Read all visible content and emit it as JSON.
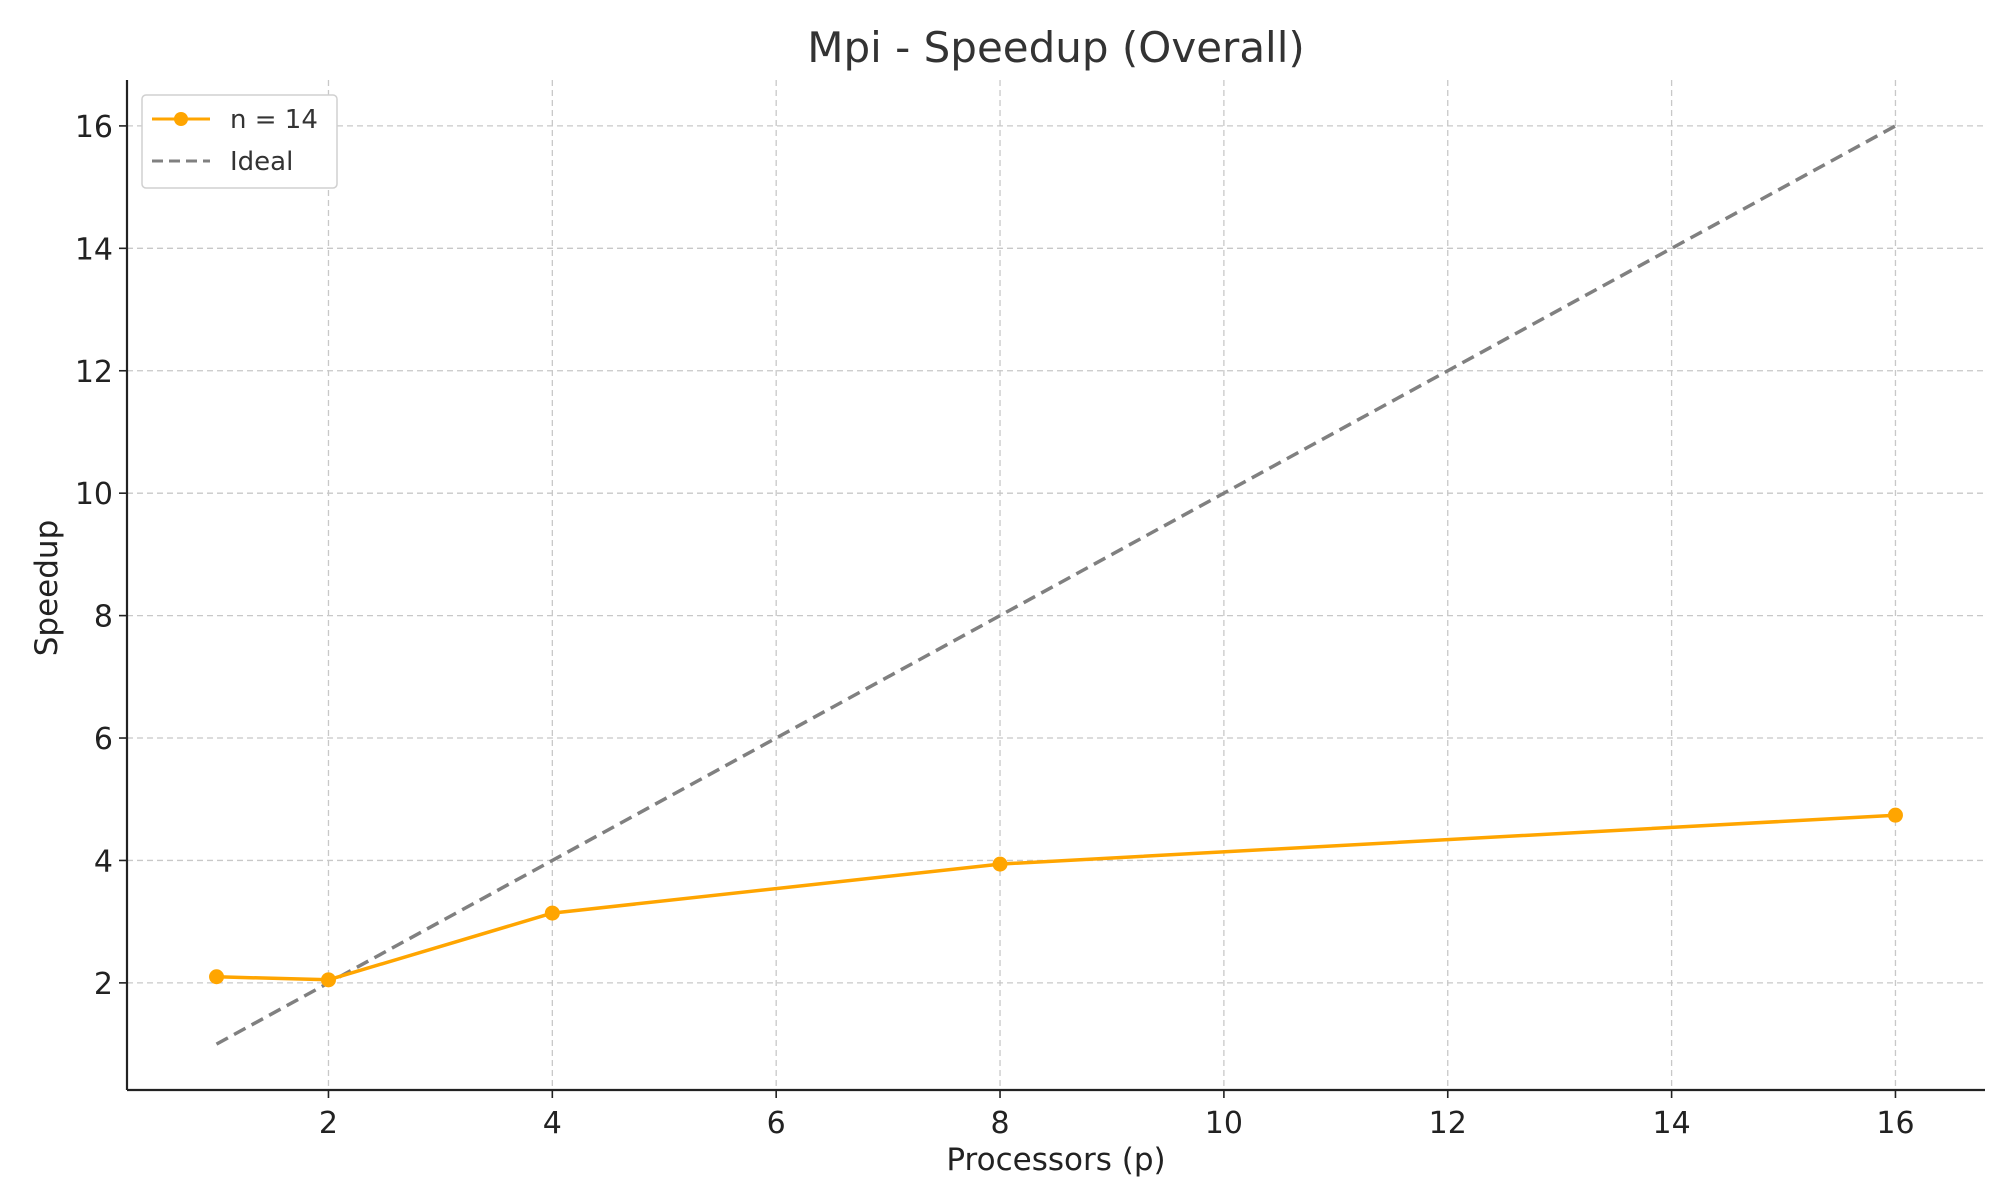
{
  "chart_data": {
    "type": "line",
    "title": "Mpi - Speedup (Overall)",
    "xlabel": "Processors (p)",
    "ylabel": "Speedup",
    "xlim": [
      0.2,
      16.8
    ],
    "ylim": [
      0.25,
      16.75
    ],
    "xticks": [
      2,
      4,
      6,
      8,
      10,
      12,
      14,
      16
    ],
    "yticks": [
      2,
      4,
      6,
      8,
      10,
      12,
      14,
      16
    ],
    "grid": true,
    "legend_position": "top-left",
    "series": [
      {
        "name": "n = 14",
        "style": "solid-with-markers",
        "color": "#FFA500",
        "x": [
          1,
          2,
          4,
          8,
          16
        ],
        "y": [
          2.1,
          2.05,
          3.14,
          3.94,
          4.74
        ]
      },
      {
        "name": "Ideal",
        "style": "dashed",
        "color": "#808080",
        "x": [
          1,
          16
        ],
        "y": [
          1,
          16
        ]
      }
    ]
  }
}
